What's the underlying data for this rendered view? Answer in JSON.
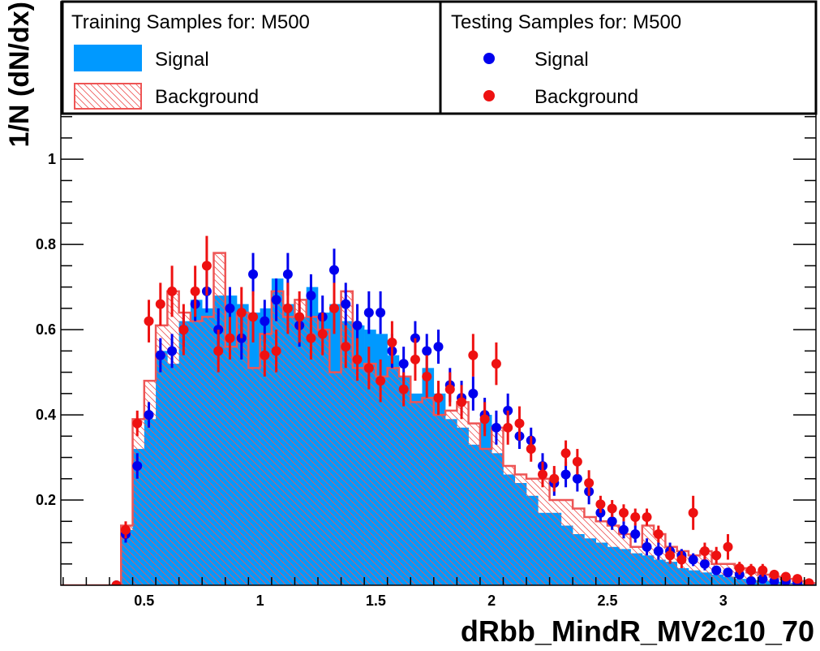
{
  "chart_data": {
    "type": "histogram",
    "xlabel": "dRbb_MindR_MV2c10_70",
    "ylabel": "1/N (dN/dx)",
    "xlim": [
      0.14,
      3.4
    ],
    "ylim": [
      0.0,
      1.37
    ],
    "x_ticks": [
      0.5,
      1,
      1.5,
      2,
      2.5,
      3
    ],
    "x_tick_labels": [
      "0.5",
      "1",
      "1.5",
      "2",
      "2.5",
      "3"
    ],
    "y_ticks": [
      0.2,
      0.4,
      0.6,
      0.8,
      1
    ],
    "y_tick_labels": [
      "0.2",
      "0.4",
      "0.6",
      "0.8",
      "1"
    ],
    "bin_edges": [
      0.14,
      0.4,
      0.45,
      0.5,
      0.55,
      0.6,
      0.65,
      0.7,
      0.75,
      0.8,
      0.85,
      0.9,
      0.95,
      1.0,
      1.05,
      1.1,
      1.15,
      1.2,
      1.25,
      1.3,
      1.35,
      1.4,
      1.45,
      1.5,
      1.55,
      1.6,
      1.65,
      1.7,
      1.75,
      1.8,
      1.85,
      1.9,
      1.95,
      2.0,
      2.05,
      2.1,
      2.15,
      2.2,
      2.25,
      2.3,
      2.35,
      2.4,
      2.45,
      2.5,
      2.55,
      2.6,
      2.65,
      2.7,
      2.75,
      2.8,
      2.85,
      2.9,
      2.95,
      3.0,
      3.05,
      3.1,
      3.15,
      3.2,
      3.25,
      3.3,
      3.35,
      3.4
    ],
    "series": [
      {
        "name": "Signal",
        "group": "Training Samples for: M500",
        "style": "filled",
        "color": "#0099ff",
        "values": [
          0.0,
          0.13,
          0.32,
          0.39,
          0.55,
          0.52,
          0.62,
          0.67,
          0.65,
          0.68,
          0.68,
          0.66,
          0.64,
          0.65,
          0.72,
          0.66,
          0.63,
          0.7,
          0.64,
          0.66,
          0.62,
          0.61,
          0.6,
          0.59,
          0.54,
          0.49,
          0.45,
          0.51,
          0.45,
          0.39,
          0.37,
          0.33,
          0.4,
          0.31,
          0.26,
          0.24,
          0.21,
          0.17,
          0.17,
          0.14,
          0.12,
          0.11,
          0.1,
          0.09,
          0.085,
          0.075,
          0.07,
          0.06,
          0.055,
          0.04,
          0.035,
          0.03,
          0.025,
          0.02,
          0.015,
          0.012,
          0.01,
          0.008,
          0.006,
          0.004,
          0.003
        ]
      },
      {
        "name": "Background",
        "group": "Training Samples for: M500",
        "style": "hatched",
        "color": "#ee5555",
        "values": [
          0.0,
          0.14,
          0.39,
          0.48,
          0.61,
          0.69,
          0.64,
          0.62,
          0.63,
          0.78,
          0.56,
          0.64,
          0.51,
          0.59,
          0.69,
          0.63,
          0.67,
          0.63,
          0.6,
          0.5,
          0.69,
          0.51,
          0.52,
          0.49,
          0.51,
          0.49,
          0.43,
          0.44,
          0.4,
          0.41,
          0.43,
          0.38,
          0.32,
          0.37,
          0.28,
          0.26,
          0.25,
          0.25,
          0.2,
          0.2,
          0.18,
          0.16,
          0.15,
          0.14,
          0.12,
          0.09,
          0.14,
          0.12,
          0.09,
          0.08,
          0.07,
          0.08,
          0.05,
          0.05,
          0.04,
          0.03,
          0.025,
          0.02,
          0.015,
          0.01,
          0.005
        ]
      },
      {
        "name": "Signal",
        "group": "Testing Samples for: M500",
        "style": "points",
        "color": "#0000ee",
        "points": [
          [
            0.38,
            0.0,
            0.0
          ],
          [
            0.42,
            0.12,
            0.02
          ],
          [
            0.47,
            0.28,
            0.03
          ],
          [
            0.52,
            0.4,
            0.03
          ],
          [
            0.57,
            0.54,
            0.04
          ],
          [
            0.62,
            0.55,
            0.04
          ],
          [
            0.67,
            0.6,
            0.04
          ],
          [
            0.72,
            0.66,
            0.04
          ],
          [
            0.77,
            0.69,
            0.05
          ],
          [
            0.82,
            0.6,
            0.05
          ],
          [
            0.87,
            0.65,
            0.05
          ],
          [
            0.92,
            0.58,
            0.05
          ],
          [
            0.97,
            0.73,
            0.05
          ],
          [
            1.02,
            0.62,
            0.05
          ],
          [
            1.07,
            0.67,
            0.05
          ],
          [
            1.12,
            0.73,
            0.05
          ],
          [
            1.17,
            0.61,
            0.05
          ],
          [
            1.22,
            0.68,
            0.05
          ],
          [
            1.27,
            0.63,
            0.05
          ],
          [
            1.32,
            0.74,
            0.05
          ],
          [
            1.37,
            0.66,
            0.05
          ],
          [
            1.42,
            0.61,
            0.05
          ],
          [
            1.47,
            0.64,
            0.05
          ],
          [
            1.52,
            0.64,
            0.05
          ],
          [
            1.57,
            0.55,
            0.04
          ],
          [
            1.62,
            0.52,
            0.04
          ],
          [
            1.67,
            0.58,
            0.04
          ],
          [
            1.72,
            0.55,
            0.04
          ],
          [
            1.77,
            0.56,
            0.04
          ],
          [
            1.82,
            0.47,
            0.04
          ],
          [
            1.87,
            0.44,
            0.04
          ],
          [
            1.92,
            0.45,
            0.04
          ],
          [
            1.97,
            0.4,
            0.04
          ],
          [
            2.02,
            0.37,
            0.04
          ],
          [
            2.07,
            0.41,
            0.04
          ],
          [
            2.12,
            0.35,
            0.03
          ],
          [
            2.17,
            0.34,
            0.03
          ],
          [
            2.22,
            0.28,
            0.03
          ],
          [
            2.27,
            0.24,
            0.03
          ],
          [
            2.32,
            0.26,
            0.03
          ],
          [
            2.37,
            0.25,
            0.03
          ],
          [
            2.42,
            0.22,
            0.03
          ],
          [
            2.47,
            0.17,
            0.02
          ],
          [
            2.52,
            0.15,
            0.02
          ],
          [
            2.57,
            0.13,
            0.02
          ],
          [
            2.62,
            0.12,
            0.02
          ],
          [
            2.67,
            0.09,
            0.02
          ],
          [
            2.72,
            0.08,
            0.02
          ],
          [
            2.77,
            0.08,
            0.02
          ],
          [
            2.82,
            0.07,
            0.015
          ],
          [
            2.87,
            0.06,
            0.015
          ],
          [
            2.92,
            0.05,
            0.015
          ],
          [
            2.97,
            0.035,
            0.01
          ],
          [
            3.02,
            0.03,
            0.01
          ],
          [
            3.07,
            0.025,
            0.01
          ],
          [
            3.12,
            0.01,
            0.01
          ],
          [
            3.17,
            0.015,
            0.01
          ],
          [
            3.22,
            0.01,
            0.01
          ],
          [
            3.27,
            0.01,
            0.005
          ],
          [
            3.32,
            0.005,
            0.005
          ],
          [
            3.37,
            0.003,
            0.003
          ]
        ]
      },
      {
        "name": "Background",
        "group": "Testing Samples for: M500",
        "style": "points",
        "color": "#ee1111",
        "points": [
          [
            0.38,
            0.0,
            0.0
          ],
          [
            0.42,
            0.13,
            0.02
          ],
          [
            0.47,
            0.38,
            0.03
          ],
          [
            0.52,
            0.62,
            0.05
          ],
          [
            0.57,
            0.66,
            0.05
          ],
          [
            0.62,
            0.69,
            0.06
          ],
          [
            0.67,
            0.6,
            0.06
          ],
          [
            0.72,
            0.69,
            0.06
          ],
          [
            0.77,
            0.75,
            0.07
          ],
          [
            0.82,
            0.55,
            0.05
          ],
          [
            0.87,
            0.58,
            0.05
          ],
          [
            0.92,
            0.64,
            0.06
          ],
          [
            0.97,
            0.63,
            0.06
          ],
          [
            1.02,
            0.54,
            0.05
          ],
          [
            1.07,
            0.55,
            0.05
          ],
          [
            1.12,
            0.65,
            0.06
          ],
          [
            1.17,
            0.63,
            0.06
          ],
          [
            1.22,
            0.58,
            0.05
          ],
          [
            1.27,
            0.59,
            0.05
          ],
          [
            1.32,
            0.65,
            0.06
          ],
          [
            1.37,
            0.56,
            0.05
          ],
          [
            1.42,
            0.53,
            0.05
          ],
          [
            1.47,
            0.51,
            0.05
          ],
          [
            1.52,
            0.48,
            0.05
          ],
          [
            1.57,
            0.57,
            0.05
          ],
          [
            1.62,
            0.46,
            0.04
          ],
          [
            1.67,
            0.53,
            0.05
          ],
          [
            1.72,
            0.49,
            0.05
          ],
          [
            1.77,
            0.44,
            0.04
          ],
          [
            1.82,
            0.46,
            0.04
          ],
          [
            1.87,
            0.43,
            0.04
          ],
          [
            1.92,
            0.54,
            0.05
          ],
          [
            1.97,
            0.39,
            0.04
          ],
          [
            2.02,
            0.52,
            0.05
          ],
          [
            2.07,
            0.37,
            0.04
          ],
          [
            2.12,
            0.38,
            0.04
          ],
          [
            2.17,
            0.32,
            0.03
          ],
          [
            2.22,
            0.26,
            0.03
          ],
          [
            2.27,
            0.25,
            0.03
          ],
          [
            2.32,
            0.31,
            0.03
          ],
          [
            2.37,
            0.29,
            0.03
          ],
          [
            2.42,
            0.24,
            0.03
          ],
          [
            2.47,
            0.19,
            0.02
          ],
          [
            2.52,
            0.18,
            0.02
          ],
          [
            2.57,
            0.17,
            0.02
          ],
          [
            2.62,
            0.16,
            0.02
          ],
          [
            2.67,
            0.16,
            0.02
          ],
          [
            2.72,
            0.12,
            0.02
          ],
          [
            2.77,
            0.07,
            0.02
          ],
          [
            2.82,
            0.06,
            0.02
          ],
          [
            2.87,
            0.17,
            0.04
          ],
          [
            2.92,
            0.08,
            0.02
          ],
          [
            2.97,
            0.07,
            0.02
          ],
          [
            3.02,
            0.09,
            0.03
          ],
          [
            3.07,
            0.04,
            0.015
          ],
          [
            3.12,
            0.035,
            0.015
          ],
          [
            3.17,
            0.035,
            0.015
          ],
          [
            3.22,
            0.025,
            0.01
          ],
          [
            3.27,
            0.02,
            0.01
          ],
          [
            3.32,
            0.015,
            0.01
          ],
          [
            3.37,
            0.005,
            0.005
          ]
        ]
      }
    ],
    "legend": {
      "training_header": "Training Samples for: M500",
      "testing_header": "Testing Samples for: M500",
      "training_entries": [
        "Signal",
        "Background"
      ],
      "testing_entries": [
        "Signal",
        "Background"
      ],
      "placement": "top"
    },
    "grid": false
  }
}
